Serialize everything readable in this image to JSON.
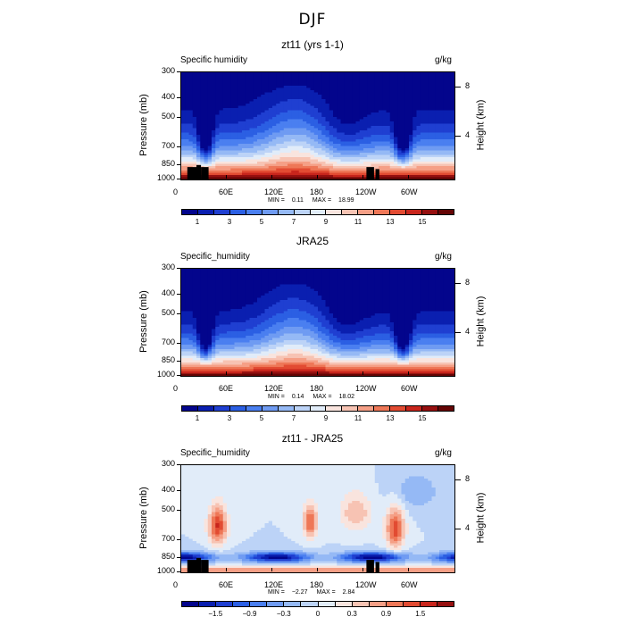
{
  "page_title": "DJF",
  "chart_data": [
    {
      "type": "heatmap",
      "title": "zt11 (yrs 1-1)",
      "variable_label": "Specific humidity",
      "units": "g/kg",
      "xlabel": "",
      "ylabel": "Pressure (mb)",
      "ylabel_right": "Height (km)",
      "x_tick_labels": [
        "0",
        "60E",
        "120E",
        "180",
        "120W",
        "60W"
      ],
      "y_tick_labels": [
        "300",
        "400",
        "500",
        "700",
        "850",
        "1000"
      ],
      "y_right_tick_labels": [
        "8",
        "4"
      ],
      "min_label": "MIN =",
      "min_value": "0.11",
      "max_label": "MAX =",
      "max_value": "18.99",
      "colorbar_labels": [
        "1",
        "3",
        "5",
        "7",
        "9",
        "11",
        "13",
        "15"
      ],
      "colors": [
        "#03058c",
        "#0a1fb0",
        "#1f3fd1",
        "#2b5fe3",
        "#4a7ff0",
        "#6f9bf2",
        "#95b9f5",
        "#bcd3f7",
        "#e1ecf9",
        "#f9e4de",
        "#f7c3b3",
        "#f59f86",
        "#ee7757",
        "#e24b32",
        "#c8251c",
        "#961010",
        "#650505"
      ],
      "y_grid_pressure": [
        300,
        400,
        500,
        700,
        850,
        1000
      ],
      "colorbar_range": [
        0,
        17
      ],
      "profile_description": "moist near surface, dry aloft; dry wedges near 30E and 60W"
    },
    {
      "type": "heatmap",
      "title": "JRA25",
      "variable_label": "Specific_humidity",
      "units": "g/kg",
      "xlabel": "",
      "ylabel": "Pressure (mb)",
      "ylabel_right": "Height (km)",
      "x_tick_labels": [
        "0",
        "60E",
        "120E",
        "180",
        "120W",
        "60W"
      ],
      "y_tick_labels": [
        "300",
        "400",
        "500",
        "700",
        "850",
        "1000"
      ],
      "y_right_tick_labels": [
        "8",
        "4"
      ],
      "min_label": "MIN =",
      "min_value": "0.14",
      "max_label": "MAX =",
      "max_value": "18.02",
      "colorbar_labels": [
        "1",
        "3",
        "5",
        "7",
        "9",
        "11",
        "13",
        "15"
      ],
      "colors": [
        "#03058c",
        "#0a1fb0",
        "#1f3fd1",
        "#2b5fe3",
        "#4a7ff0",
        "#6f9bf2",
        "#95b9f5",
        "#bcd3f7",
        "#e1ecf9",
        "#f9e4de",
        "#f7c3b3",
        "#f59f86",
        "#ee7757",
        "#e24b32",
        "#c8251c",
        "#961010",
        "#650505"
      ],
      "colorbar_range": [
        0,
        17
      ]
    },
    {
      "type": "heatmap",
      "title": "zt11 - JRA25",
      "variable_label": "Specific_humidity",
      "units": "g/kg",
      "xlabel": "",
      "ylabel": "Pressure (mb)",
      "ylabel_right": "Height (km)",
      "x_tick_labels": [
        "0",
        "60E",
        "120E",
        "180",
        "120W",
        "60W"
      ],
      "y_tick_labels": [
        "300",
        "400",
        "500",
        "700",
        "850",
        "1000"
      ],
      "y_right_tick_labels": [
        "8",
        "4"
      ],
      "min_label": "MIN =",
      "min_value": "−2.27",
      "max_label": "MAX =",
      "max_value": "2.84",
      "colorbar_labels": [
        "−1.5",
        "−0.9",
        "−0.3",
        "0",
        "0.3",
        "0.9",
        "1.5"
      ],
      "colors": [
        "#03058c",
        "#0a1fb0",
        "#1f3fd1",
        "#2b5fe3",
        "#4a7ff0",
        "#6f9bf2",
        "#95b9f5",
        "#bcd3f7",
        "#e1ecf9",
        "#f9e4de",
        "#f7c3b3",
        "#f59f86",
        "#ee7757",
        "#e24b32",
        "#c8251c",
        "#961010"
      ],
      "colorbar_range": [
        -2.1,
        2.1
      ]
    }
  ]
}
